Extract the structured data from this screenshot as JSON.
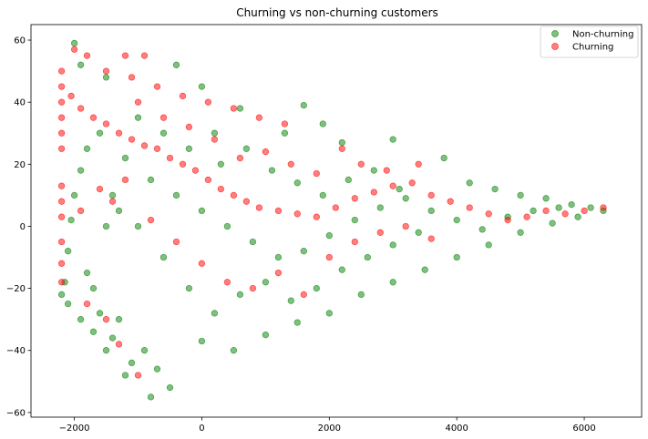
{
  "chart_data": {
    "type": "scatter",
    "title": "Churning vs non-churning customers",
    "xlabel": "",
    "ylabel": "",
    "xlim": [
      -2680,
      6900
    ],
    "ylim": [
      -61.5,
      65
    ],
    "xticks": [
      -2000,
      0,
      2000,
      4000,
      6000
    ],
    "xtick_labels": [
      "−2000",
      "0",
      "2000",
      "4000",
      "6000"
    ],
    "yticks": [
      -60,
      -40,
      -20,
      0,
      20,
      40,
      60
    ],
    "ytick_labels": [
      "−60",
      "−40",
      "−20",
      "0",
      "20",
      "40",
      "60"
    ],
    "grid": false,
    "legend_position": "top-right",
    "series": [
      {
        "name": "Non-churning",
        "color": "#008000",
        "opacity": 0.5,
        "points": [
          [
            -2000,
            59
          ],
          [
            -1900,
            52
          ],
          [
            -1500,
            48
          ],
          [
            -400,
            52
          ],
          [
            0,
            45
          ],
          [
            600,
            38
          ],
          [
            1600,
            39
          ],
          [
            1900,
            33
          ],
          [
            2200,
            27
          ],
          [
            3000,
            28
          ],
          [
            3800,
            22
          ],
          [
            4200,
            14
          ],
          [
            4600,
            12
          ],
          [
            5000,
            10
          ],
          [
            5400,
            9
          ],
          [
            5800,
            7
          ],
          [
            6100,
            6
          ],
          [
            6300,
            5
          ],
          [
            5900,
            3
          ],
          [
            5500,
            1
          ],
          [
            5000,
            -2
          ],
          [
            4500,
            -6
          ],
          [
            4000,
            -10
          ],
          [
            3500,
            -14
          ],
          [
            3000,
            -18
          ],
          [
            2500,
            -22
          ],
          [
            2000,
            -28
          ],
          [
            1500,
            -31
          ],
          [
            1000,
            -35
          ],
          [
            500,
            -40
          ],
          [
            0,
            -37
          ],
          [
            -500,
            -52
          ],
          [
            -800,
            -55
          ],
          [
            -1200,
            -48
          ],
          [
            -1500,
            -40
          ],
          [
            -1700,
            -34
          ],
          [
            -1900,
            -30
          ],
          [
            -2100,
            -25
          ],
          [
            -2200,
            -22
          ],
          [
            -2150,
            -18
          ],
          [
            -2100,
            -8
          ],
          [
            -2050,
            2
          ],
          [
            -2000,
            10
          ],
          [
            -1900,
            18
          ],
          [
            -1800,
            25
          ],
          [
            -1600,
            30
          ],
          [
            -1200,
            22
          ],
          [
            -800,
            15
          ],
          [
            -400,
            10
          ],
          [
            0,
            5
          ],
          [
            400,
            0
          ],
          [
            800,
            -5
          ],
          [
            1200,
            -10
          ],
          [
            1600,
            -8
          ],
          [
            2000,
            -3
          ],
          [
            2400,
            2
          ],
          [
            2800,
            6
          ],
          [
            3200,
            9
          ],
          [
            3600,
            5
          ],
          [
            4000,
            2
          ],
          [
            4400,
            -1
          ],
          [
            4800,
            3
          ],
          [
            5200,
            5
          ],
          [
            5600,
            6
          ],
          [
            300,
            20
          ],
          [
            700,
            25
          ],
          [
            1100,
            18
          ],
          [
            1500,
            14
          ],
          [
            1900,
            10
          ],
          [
            2300,
            15
          ],
          [
            2700,
            18
          ],
          [
            3100,
            12
          ],
          [
            -1000,
            35
          ],
          [
            -600,
            30
          ],
          [
            -200,
            25
          ],
          [
            200,
            30
          ],
          [
            1300,
            30
          ],
          [
            -1400,
            10
          ],
          [
            -1000,
            0
          ],
          [
            -600,
            -10
          ],
          [
            -200,
            -20
          ],
          [
            200,
            -28
          ],
          [
            600,
            -22
          ],
          [
            1000,
            -18
          ],
          [
            1400,
            -24
          ],
          [
            1800,
            -20
          ],
          [
            2200,
            -14
          ],
          [
            2600,
            -10
          ],
          [
            3000,
            -6
          ],
          [
            3400,
            -2
          ],
          [
            -1700,
            -20
          ],
          [
            -1300,
            -30
          ],
          [
            -900,
            -40
          ],
          [
            -700,
            -46
          ],
          [
            -1100,
            -44
          ],
          [
            -1400,
            -36
          ],
          [
            -1600,
            -28
          ],
          [
            -1800,
            -15
          ],
          [
            -1500,
            0
          ],
          [
            -1300,
            5
          ]
        ]
      },
      {
        "name": "Churning",
        "color": "#ff0000",
        "opacity": 0.5,
        "points": [
          [
            -2000,
            57
          ],
          [
            -1800,
            55
          ],
          [
            -1200,
            55
          ],
          [
            -900,
            55
          ],
          [
            -1500,
            50
          ],
          [
            -1100,
            48
          ],
          [
            -700,
            45
          ],
          [
            -300,
            42
          ],
          [
            100,
            40
          ],
          [
            500,
            38
          ],
          [
            900,
            35
          ],
          [
            1300,
            33
          ],
          [
            -2200,
            50
          ],
          [
            -2200,
            45
          ],
          [
            -2200,
            40
          ],
          [
            -2200,
            35
          ],
          [
            -2200,
            30
          ],
          [
            -2200,
            25
          ],
          [
            -2200,
            13
          ],
          [
            -2200,
            8
          ],
          [
            -2200,
            3
          ],
          [
            -2200,
            -5
          ],
          [
            -2200,
            -12
          ],
          [
            -2200,
            -18
          ],
          [
            -2050,
            42
          ],
          [
            -1900,
            38
          ],
          [
            -1700,
            35
          ],
          [
            -1500,
            33
          ],
          [
            -1300,
            30
          ],
          [
            -1100,
            28
          ],
          [
            -900,
            26
          ],
          [
            -700,
            25
          ],
          [
            -500,
            22
          ],
          [
            -300,
            20
          ],
          [
            -100,
            18
          ],
          [
            100,
            15
          ],
          [
            300,
            12
          ],
          [
            500,
            10
          ],
          [
            700,
            8
          ],
          [
            900,
            6
          ],
          [
            1200,
            5
          ],
          [
            1500,
            4
          ],
          [
            1800,
            3
          ],
          [
            2100,
            6
          ],
          [
            2400,
            9
          ],
          [
            2700,
            11
          ],
          [
            3000,
            13
          ],
          [
            3300,
            14
          ],
          [
            3600,
            10
          ],
          [
            3900,
            8
          ],
          [
            4200,
            6
          ],
          [
            4500,
            4
          ],
          [
            4800,
            2
          ],
          [
            5100,
            3
          ],
          [
            5400,
            5
          ],
          [
            5700,
            4
          ],
          [
            6000,
            5
          ],
          [
            6300,
            6
          ],
          [
            2200,
            25
          ],
          [
            2500,
            20
          ],
          [
            2900,
            18
          ],
          [
            3400,
            20
          ],
          [
            -1800,
            -25
          ],
          [
            -1500,
            -30
          ],
          [
            -1300,
            -38
          ],
          [
            -1000,
            -48
          ],
          [
            -1900,
            5
          ],
          [
            -1600,
            12
          ],
          [
            -1400,
            8
          ],
          [
            -1200,
            15
          ],
          [
            -800,
            2
          ],
          [
            -400,
            -5
          ],
          [
            0,
            -12
          ],
          [
            400,
            -18
          ],
          [
            800,
            -20
          ],
          [
            1200,
            -15
          ],
          [
            1600,
            -22
          ],
          [
            2000,
            -10
          ],
          [
            2400,
            -5
          ],
          [
            2800,
            -2
          ],
          [
            3200,
            0
          ],
          [
            3600,
            -4
          ],
          [
            600,
            22
          ],
          [
            1000,
            24
          ],
          [
            1400,
            20
          ],
          [
            1800,
            17
          ],
          [
            -1000,
            40
          ],
          [
            -600,
            35
          ],
          [
            -200,
            32
          ],
          [
            200,
            28
          ]
        ]
      }
    ]
  }
}
